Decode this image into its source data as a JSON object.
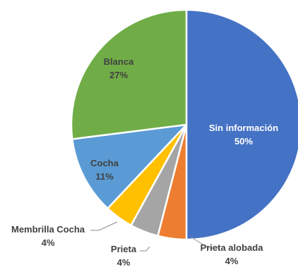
{
  "chart_data": {
    "type": "pie",
    "title": "",
    "slices": [
      {
        "label": "Sin información",
        "value": 50,
        "pct_text": "50%",
        "color": "#4472C4",
        "label_mode": "inside",
        "label_color": "#FFFFFF"
      },
      {
        "label": "Prieta alobada",
        "value": 4,
        "pct_text": "4%",
        "color": "#ED7D31",
        "label_mode": "outside",
        "label_color": "#404040"
      },
      {
        "label": "Prieta",
        "value": 4,
        "pct_text": "4%",
        "color": "#A5A5A5",
        "label_mode": "outside",
        "label_color": "#404040"
      },
      {
        "label": "Membrilla Cocha",
        "value": 4,
        "pct_text": "4%",
        "color": "#FFC000",
        "label_mode": "outside",
        "label_color": "#404040"
      },
      {
        "label": "Cocha",
        "value": 11,
        "pct_text": "11%",
        "color": "#5B9BD5",
        "label_mode": "inside",
        "label_color": "#404040"
      },
      {
        "label": "Blanca",
        "value": 27,
        "pct_text": "27%",
        "color": "#70AD47",
        "label_mode": "inside",
        "label_color": "#404040"
      }
    ]
  }
}
